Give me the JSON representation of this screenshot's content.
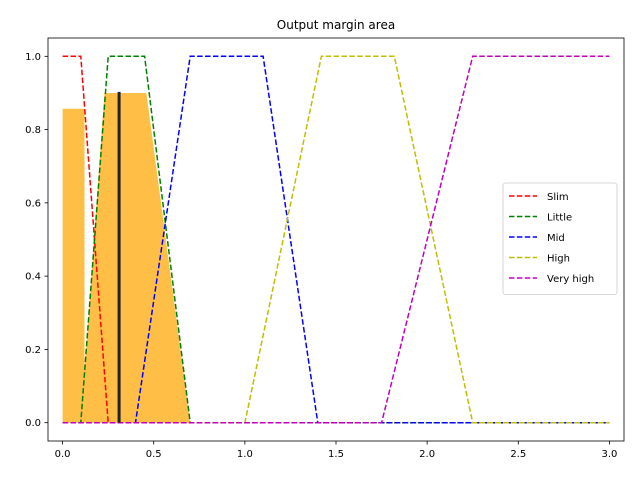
{
  "chart_data": {
    "type": "line",
    "title": "Output margin area",
    "xlabel": "",
    "ylabel": "",
    "xlim": [
      -0.08,
      3.08
    ],
    "ylim": [
      -0.05,
      1.05
    ],
    "xticks": [
      0.0,
      0.5,
      1.0,
      1.5,
      2.0,
      2.5,
      3.0
    ],
    "xtick_labels": [
      "0.0",
      "0.5",
      "1.0",
      "1.5",
      "2.0",
      "2.5",
      "3.0"
    ],
    "yticks": [
      0.0,
      0.2,
      0.4,
      0.6,
      0.8,
      1.0
    ],
    "ytick_labels": [
      "0.0",
      "0.2",
      "0.4",
      "0.6",
      "0.8",
      "1.0"
    ],
    "grid": false,
    "legend_position": "center-right",
    "series": [
      {
        "name": "Slim",
        "color": "#ff0000",
        "style": "dashed",
        "x": [
          0.0,
          0.1,
          0.25,
          3.0
        ],
        "y": [
          1,
          1,
          0,
          0
        ]
      },
      {
        "name": "Little",
        "color": "#008000",
        "style": "dashed",
        "x": [
          0.0,
          0.1,
          0.25,
          0.45,
          0.7,
          3.0
        ],
        "y": [
          0,
          0,
          1,
          1,
          0,
          0
        ]
      },
      {
        "name": "Mid",
        "color": "#0000ff",
        "style": "dashed",
        "x": [
          0.0,
          0.4,
          0.7,
          1.1,
          1.4,
          3.0
        ],
        "y": [
          0,
          0,
          1,
          1,
          0,
          0
        ]
      },
      {
        "name": "High",
        "color": "#bfbf00",
        "style": "dashed",
        "x": [
          0.0,
          1.0,
          1.42,
          1.82,
          2.25,
          3.0
        ],
        "y": [
          0,
          0,
          1,
          1,
          0,
          0
        ]
      },
      {
        "name": "Very high",
        "color": "#bf00bf",
        "style": "dashed",
        "x": [
          0.0,
          1.75,
          2.25,
          3.0
        ],
        "y": [
          0,
          0,
          1,
          1
        ]
      }
    ],
    "filled_area": {
      "color": "#ffb833",
      "x": [
        0.0,
        0.0,
        0.12,
        0.12,
        0.13,
        0.23,
        0.23,
        0.32,
        0.46,
        0.7,
        0.0
      ],
      "y": [
        0.0,
        0.857,
        0.857,
        0.15,
        0.2,
        0.9,
        0.9,
        0.9,
        0.9,
        0.0,
        0.0
      ]
    },
    "marker_line": {
      "color": "#222222",
      "x": 0.31,
      "y": [
        0.0,
        0.903
      ]
    }
  }
}
